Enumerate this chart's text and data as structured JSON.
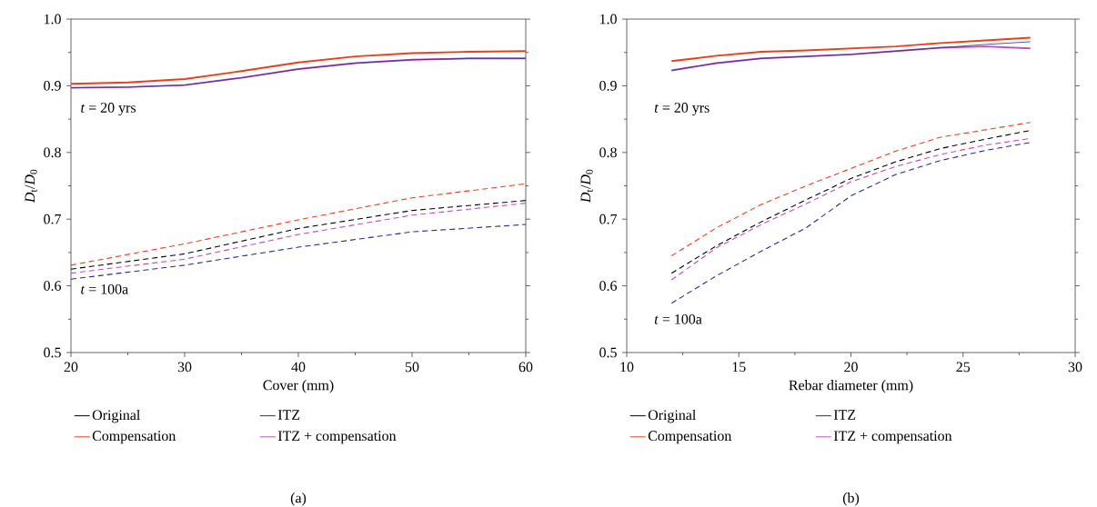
{
  "chart_data": [
    {
      "type": "line",
      "xlabel": "Cover (mm)",
      "ylabel": "*D*$_{t}$/*D*$_{0}$",
      "xlim": [
        20,
        60
      ],
      "ylim": [
        0.5,
        1.0
      ],
      "xticks": [
        20,
        30,
        40,
        50,
        60
      ],
      "yticks": [
        0.5,
        0.6,
        0.7,
        0.8,
        0.9,
        {
          "value": 1.0,
          "label": "1.0"
        }
      ],
      "x": [
        20,
        25,
        30,
        35,
        40,
        45,
        50,
        55,
        60
      ],
      "legend": "bottom",
      "grid": false,
      "marker": "none",
      "series": [
        {
          "name": "Original",
          "color": "#000000",
          "line_style": "solid",
          "values": [
            null,
            null,
            null,
            null,
            null,
            null,
            null,
            null,
            null
          ]
        },
        {
          "name": "Compensation",
          "color": "#e8401c",
          "line_style": "solid",
          "values": [
            0.903,
            0.905,
            0.91,
            0.922,
            0.935,
            0.944,
            0.949,
            0.951,
            0.952
          ]
        },
        {
          "name": "ITZ",
          "color": "#2a2a9a",
          "line_style": "solid",
          "values": [
            0.897,
            0.898,
            0.901,
            0.912,
            0.925,
            0.934,
            0.939,
            0.941,
            0.941
          ]
        },
        {
          "name": "ITZ + compensation",
          "color": "#c050b8",
          "line_style": "solid",
          "values": [
            0.897,
            0.898,
            0.901,
            0.912,
            0.925,
            0.934,
            0.939,
            0.941,
            0.941
          ]
        },
        {
          "color": "#000000",
          "line_style": "dashed",
          "x": [
            20,
            30,
            40,
            50,
            60
          ],
          "values": [
            0.625,
            0.648,
            0.686,
            0.713,
            0.728
          ]
        },
        {
          "color": "#e8401c",
          "line_style": "dashed",
          "x": [
            20,
            30,
            40,
            50,
            60
          ],
          "values": [
            0.631,
            0.663,
            0.699,
            0.732,
            0.753
          ]
        },
        {
          "color": "#2a2a9a",
          "line_style": "dashed",
          "x": [
            20,
            30,
            40,
            50,
            60
          ],
          "values": [
            0.61,
            0.631,
            0.658,
            0.681,
            0.692
          ]
        },
        {
          "color": "#c050b8",
          "line_style": "dashed",
          "x": [
            20,
            30,
            40,
            50,
            60
          ],
          "values": [
            0.619,
            0.64,
            0.677,
            0.706,
            0.724
          ]
        }
      ],
      "annotations": [
        "*t* = 20 yrs",
        "*t* = 100a",
        "(a)"
      ]
    },
    {
      "type": "line",
      "xlabel": "Rebar diameter (mm)",
      "ylabel": "*D*$_{t}$/*D*$_{0}$",
      "xlim": [
        10,
        30
      ],
      "ylim": [
        0.5,
        1.0
      ],
      "xticks": [
        10,
        15,
        20,
        25,
        30
      ],
      "yticks": [
        0.5,
        0.6,
        0.7,
        0.8,
        0.9,
        {
          "value": 1.0,
          "label": "1.0"
        }
      ],
      "x": [
        12,
        14,
        16,
        18,
        20,
        22,
        24,
        26,
        28
      ],
      "legend": "bottom",
      "grid": false,
      "marker": "none",
      "series": [
        {
          "name": "Original",
          "color": "#000000",
          "line_style": "solid",
          "values": [
            null,
            null,
            null,
            null,
            null,
            null,
            null,
            null,
            null
          ]
        },
        {
          "name": "Compensation",
          "color": "#e8401c",
          "line_style": "solid",
          "values": [
            0.937,
            0.945,
            0.951,
            0.953,
            0.956,
            0.959,
            0.964,
            0.968,
            0.972
          ]
        },
        {
          "name": "ITZ",
          "color": "#2a2a9a",
          "line_style": "solid",
          "values": [
            0.923,
            0.934,
            0.941,
            0.944,
            0.947,
            0.952,
            0.957,
            0.962,
            0.966
          ]
        },
        {
          "name": "ITZ + compensation",
          "color": "#c050b8",
          "line_style": "solid",
          "values": [
            0.923,
            0.934,
            0.941,
            0.944,
            0.947,
            0.952,
            0.957,
            0.959,
            0.956
          ]
        },
        {
          "color": "#000000",
          "line_style": "dashed",
          "values": [
            0.619,
            0.66,
            0.696,
            0.729,
            0.761,
            0.786,
            0.806,
            0.82,
            0.833
          ]
        },
        {
          "color": "#e8401c",
          "line_style": "dashed",
          "values": [
            0.645,
            0.687,
            0.722,
            0.75,
            0.776,
            0.802,
            0.823,
            0.834,
            0.845
          ]
        },
        {
          "color": "#2a2a9a",
          "line_style": "dashed",
          "values": [
            0.574,
            0.615,
            0.652,
            0.687,
            0.735,
            0.767,
            0.788,
            0.803,
            0.815
          ]
        },
        {
          "color": "#c050b8",
          "line_style": "dashed",
          "values": [
            0.609,
            0.657,
            0.692,
            0.723,
            0.756,
            0.779,
            0.797,
            0.811,
            0.821
          ]
        }
      ],
      "annotations": [
        "*t* = 20 yrs",
        "*t* = 100a",
        "(b)"
      ]
    }
  ]
}
